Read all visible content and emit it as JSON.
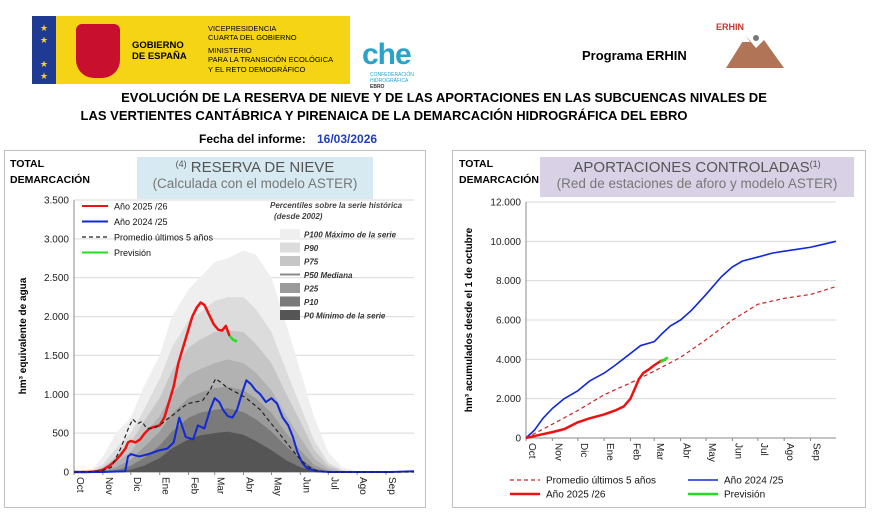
{
  "header": {
    "gov_name": [
      "GOBIERNO",
      "DE ESPAÑA"
    ],
    "ministry_lines": [
      "VICEPRESIDENCIA",
      "CUARTA DEL GOBIERNO",
      "MINISTERIO",
      "PARA LA TRANSICIÓN ECOLÓGICA",
      "Y EL RETO DEMOGRÁFICO"
    ],
    "che_logo": "che",
    "che_sub": [
      "CONFEDERACIÓN",
      "HIDROGRÁFICA",
      "EBRO"
    ],
    "programa": "Programa ERHIN",
    "erhin_logo": "ERHIN",
    "title_line1": "EVOLUCIÓN DE LA RESERVA DE NIEVE Y DE LAS APORTACIONES EN LAS SUBCUENCAS NIVALES DE",
    "title_line2": "LAS VERTIENTES CANTÁBRICA Y PIRENAICA DE LA DEMARCACIÓN HIDROGRÁFICA DEL EBRO",
    "fecha_label": "Fecha del informe:",
    "fecha_value": "16/03/2026"
  },
  "colors": {
    "gov_yellow": "#f5d416",
    "eu_blue": "#1f3a93",
    "che_cyan": "#29a3c9",
    "left_title_bg": "#d7eaf2",
    "right_title_bg": "#d9d2e6",
    "red": "#ee1111",
    "blue": "#1028d8",
    "green": "#22dd22",
    "avg": "#222222",
    "avg_red": "#cc2222"
  },
  "chart_data": [
    {
      "type": "area",
      "corner_label": [
        "TOTAL",
        "DEMARCACIÓN"
      ],
      "title_sup": "(4)",
      "title": "RESERVA DE NIEVE",
      "subtitle": "(Calculada con el modelo ASTER)",
      "ylabel": "hm³ equivalente de agua",
      "ylim": [
        0,
        3500
      ],
      "yticks": [
        0,
        500,
        1000,
        1500,
        2000,
        2500,
        3000,
        3500
      ],
      "ytick_labels": [
        "0",
        "500",
        "1.000",
        "1.500",
        "2.000",
        "2.500",
        "3.000",
        "3.500"
      ],
      "xlim": [
        0,
        365
      ],
      "xticks": [
        0,
        31,
        61,
        92,
        123,
        151,
        182,
        212,
        243,
        273,
        304,
        335
      ],
      "xtick_labels": [
        "Oct",
        "Nov",
        "Dic",
        "Ene",
        "Feb",
        "Mar",
        "Abr",
        "May",
        "Jun",
        "Jul",
        "Ago",
        "Sep"
      ],
      "percentile_title": "Percentiles sobre la serie histórica",
      "percentile_subtitle": "(desde 2002)",
      "percentile_x": [
        0,
        20,
        31,
        45,
        61,
        75,
        92,
        105,
        123,
        135,
        151,
        165,
        182,
        195,
        212,
        228,
        243,
        258,
        273,
        288,
        304,
        335,
        365
      ],
      "percentiles": [
        {
          "name": "P100 Máximo de la serie",
          "color": "#efefef",
          "values": [
            0,
            40,
            200,
            500,
            700,
            1100,
            1500,
            2000,
            2350,
            2500,
            2700,
            2750,
            2850,
            2800,
            2500,
            1900,
            1300,
            700,
            250,
            60,
            10,
            0,
            0
          ]
        },
        {
          "name": "P90",
          "color": "#dcdcdc",
          "values": [
            0,
            20,
            100,
            300,
            500,
            800,
            1200,
            1600,
            1950,
            2050,
            2200,
            2250,
            2250,
            2100,
            1800,
            1300,
            850,
            400,
            120,
            25,
            0,
            0,
            0
          ]
        },
        {
          "name": "P75",
          "color": "#c6c6c6",
          "values": [
            0,
            10,
            60,
            200,
            380,
            650,
            950,
            1300,
            1600,
            1700,
            1800,
            1820,
            1800,
            1650,
            1400,
            1000,
            650,
            280,
            80,
            15,
            0,
            0,
            0
          ]
        },
        {
          "name": "P50 Mediana",
          "color": "#b2b2b2",
          "values": [
            0,
            5,
            30,
            120,
            260,
            480,
            720,
            1000,
            1250,
            1320,
            1400,
            1450,
            1400,
            1280,
            1050,
            720,
            440,
            170,
            40,
            5,
            0,
            0,
            0
          ]
        },
        {
          "name": "P25",
          "color": "#9a9a9a",
          "values": [
            0,
            2,
            15,
            60,
            160,
            320,
            520,
            750,
            950,
            1020,
            1080,
            1100,
            1050,
            950,
            760,
            500,
            280,
            90,
            15,
            0,
            0,
            0,
            0
          ]
        },
        {
          "name": "P10",
          "color": "#7a7a7a",
          "values": [
            0,
            0,
            5,
            25,
            80,
            180,
            340,
            520,
            700,
            760,
            800,
            820,
            770,
            680,
            520,
            330,
            170,
            45,
            5,
            0,
            0,
            0,
            0
          ]
        },
        {
          "name": "P0 Mínimo de la serie",
          "color": "#555555",
          "values": [
            0,
            0,
            0,
            10,
            30,
            80,
            180,
            300,
            420,
            470,
            500,
            520,
            480,
            400,
            280,
            150,
            60,
            10,
            0,
            0,
            0,
            0,
            0
          ]
        }
      ],
      "series": [
        {
          "name": "Año 2025 /26",
          "color": "#ee1111",
          "width": 2.5,
          "x": [
            0,
            15,
            25,
            31,
            38,
            45,
            50,
            55,
            58,
            61,
            66,
            71,
            76,
            81,
            86,
            92,
            97,
            102,
            107,
            112,
            117,
            122,
            127,
            132,
            136,
            140,
            144,
            150,
            155,
            159,
            163,
            167
          ],
          "y": [
            0,
            0,
            10,
            30,
            80,
            150,
            220,
            300,
            380,
            400,
            380,
            420,
            500,
            560,
            580,
            600,
            700,
            900,
            1100,
            1400,
            1600,
            1800,
            2000,
            2120,
            2180,
            2150,
            2050,
            1900,
            1830,
            1820,
            1880,
            1750
          ]
        },
        {
          "name": "Año 2024 /25",
          "color": "#1028d8",
          "width": 2,
          "x": [
            0,
            30,
            55,
            58,
            61,
            70,
            80,
            92,
            100,
            107,
            113,
            120,
            128,
            133,
            140,
            146,
            151,
            156,
            160,
            165,
            170,
            175,
            180,
            185,
            190,
            195,
            200,
            206,
            212,
            218,
            224,
            230,
            235,
            240,
            245,
            250,
            260,
            275,
            300,
            340,
            365
          ],
          "y": [
            0,
            0,
            10,
            200,
            230,
            200,
            230,
            280,
            300,
            380,
            700,
            450,
            420,
            600,
            560,
            800,
            950,
            900,
            800,
            720,
            700,
            800,
            1000,
            1180,
            1130,
            1050,
            1000,
            900,
            950,
            880,
            700,
            600,
            450,
            250,
            120,
            50,
            10,
            0,
            0,
            0,
            10
          ]
        },
        {
          "name": "Promedio últimos 5 años",
          "color": "#222222",
          "width": 1.2,
          "dash": "4,3",
          "x": [
            0,
            20,
            31,
            40,
            50,
            58,
            63,
            68,
            73,
            78,
            85,
            92,
            100,
            107,
            115,
            122,
            130,
            138,
            146,
            152,
            158,
            163,
            170,
            178,
            185,
            192,
            200,
            210,
            220,
            230,
            240,
            250,
            260,
            270,
            300,
            365
          ],
          "y": [
            0,
            5,
            20,
            60,
            300,
            550,
            680,
            620,
            650,
            560,
            560,
            600,
            680,
            740,
            820,
            880,
            900,
            920,
            1050,
            1200,
            1150,
            1100,
            1050,
            1000,
            950,
            880,
            800,
            650,
            500,
            350,
            200,
            80,
            20,
            0,
            0,
            0
          ]
        },
        {
          "name": "Previsión",
          "color": "#22dd22",
          "width": 2.5,
          "x": [
            167,
            171,
            175
          ],
          "y": [
            1750,
            1700,
            1680
          ]
        }
      ],
      "legend_position": "top-left"
    },
    {
      "type": "line",
      "corner_label": [
        "TOTAL",
        "DEMARCACIÓN"
      ],
      "title": "APORTACIONES CONTROLADAS",
      "title_sup": "(1)",
      "subtitle": "(Red de estaciones de aforo y modelo ASTER)",
      "ylabel": "hm³ acumulados desde el 1 de octubre",
      "ylim": [
        0,
        12000
      ],
      "yticks": [
        0,
        2000,
        4000,
        6000,
        8000,
        10000,
        12000
      ],
      "ytick_labels": [
        "0",
        "2.000",
        "4.000",
        "6.000",
        "8.000",
        "10.000",
        "12.000"
      ],
      "xlim": [
        0,
        365
      ],
      "xticks": [
        0,
        31,
        61,
        92,
        123,
        151,
        182,
        212,
        243,
        273,
        304,
        335
      ],
      "xtick_labels": [
        "Oct",
        "Nov",
        "Dic",
        "Ene",
        "Feb",
        "Mar",
        "Abr",
        "May",
        "Jun",
        "Jul",
        "Ago",
        "Sep"
      ],
      "series": [
        {
          "name": "Promedio últimos 5 años",
          "color": "#cc2222",
          "width": 1.2,
          "dash": "4,3",
          "x": [
            0,
            31,
            61,
            92,
            123,
            151,
            182,
            212,
            243,
            273,
            304,
            335,
            365
          ],
          "y": [
            0,
            700,
            1400,
            2200,
            2800,
            3400,
            4100,
            5000,
            6000,
            6800,
            7100,
            7300,
            7700
          ]
        },
        {
          "name": "Año 2024 /25",
          "color": "#1028d8",
          "width": 1.6,
          "x": [
            0,
            10,
            20,
            31,
            45,
            61,
            75,
            92,
            105,
            123,
            135,
            151,
            160,
            170,
            182,
            195,
            212,
            230,
            243,
            255,
            273,
            290,
            304,
            320,
            335,
            350,
            365
          ],
          "y": [
            0,
            400,
            1000,
            1500,
            2000,
            2400,
            2900,
            3300,
            3700,
            4300,
            4700,
            4900,
            5300,
            5700,
            6000,
            6500,
            7300,
            8200,
            8700,
            9000,
            9200,
            9400,
            9500,
            9600,
            9700,
            9850,
            10000
          ]
        },
        {
          "name": "Año 2025 /26",
          "color": "#ee1111",
          "width": 2.5,
          "x": [
            0,
            15,
            31,
            45,
            61,
            75,
            92,
            105,
            115,
            123,
            128,
            133,
            138,
            145,
            151,
            158,
            165
          ],
          "y": [
            0,
            150,
            300,
            450,
            800,
            1000,
            1200,
            1400,
            1600,
            2000,
            2500,
            3000,
            3300,
            3500,
            3700,
            3900,
            4000
          ]
        },
        {
          "name": "Previsión",
          "color": "#22dd22",
          "width": 2.5,
          "x": [
            158,
            162,
            167
          ],
          "y": [
            3850,
            3950,
            4100
          ]
        }
      ],
      "legend_position": "bottom"
    }
  ]
}
